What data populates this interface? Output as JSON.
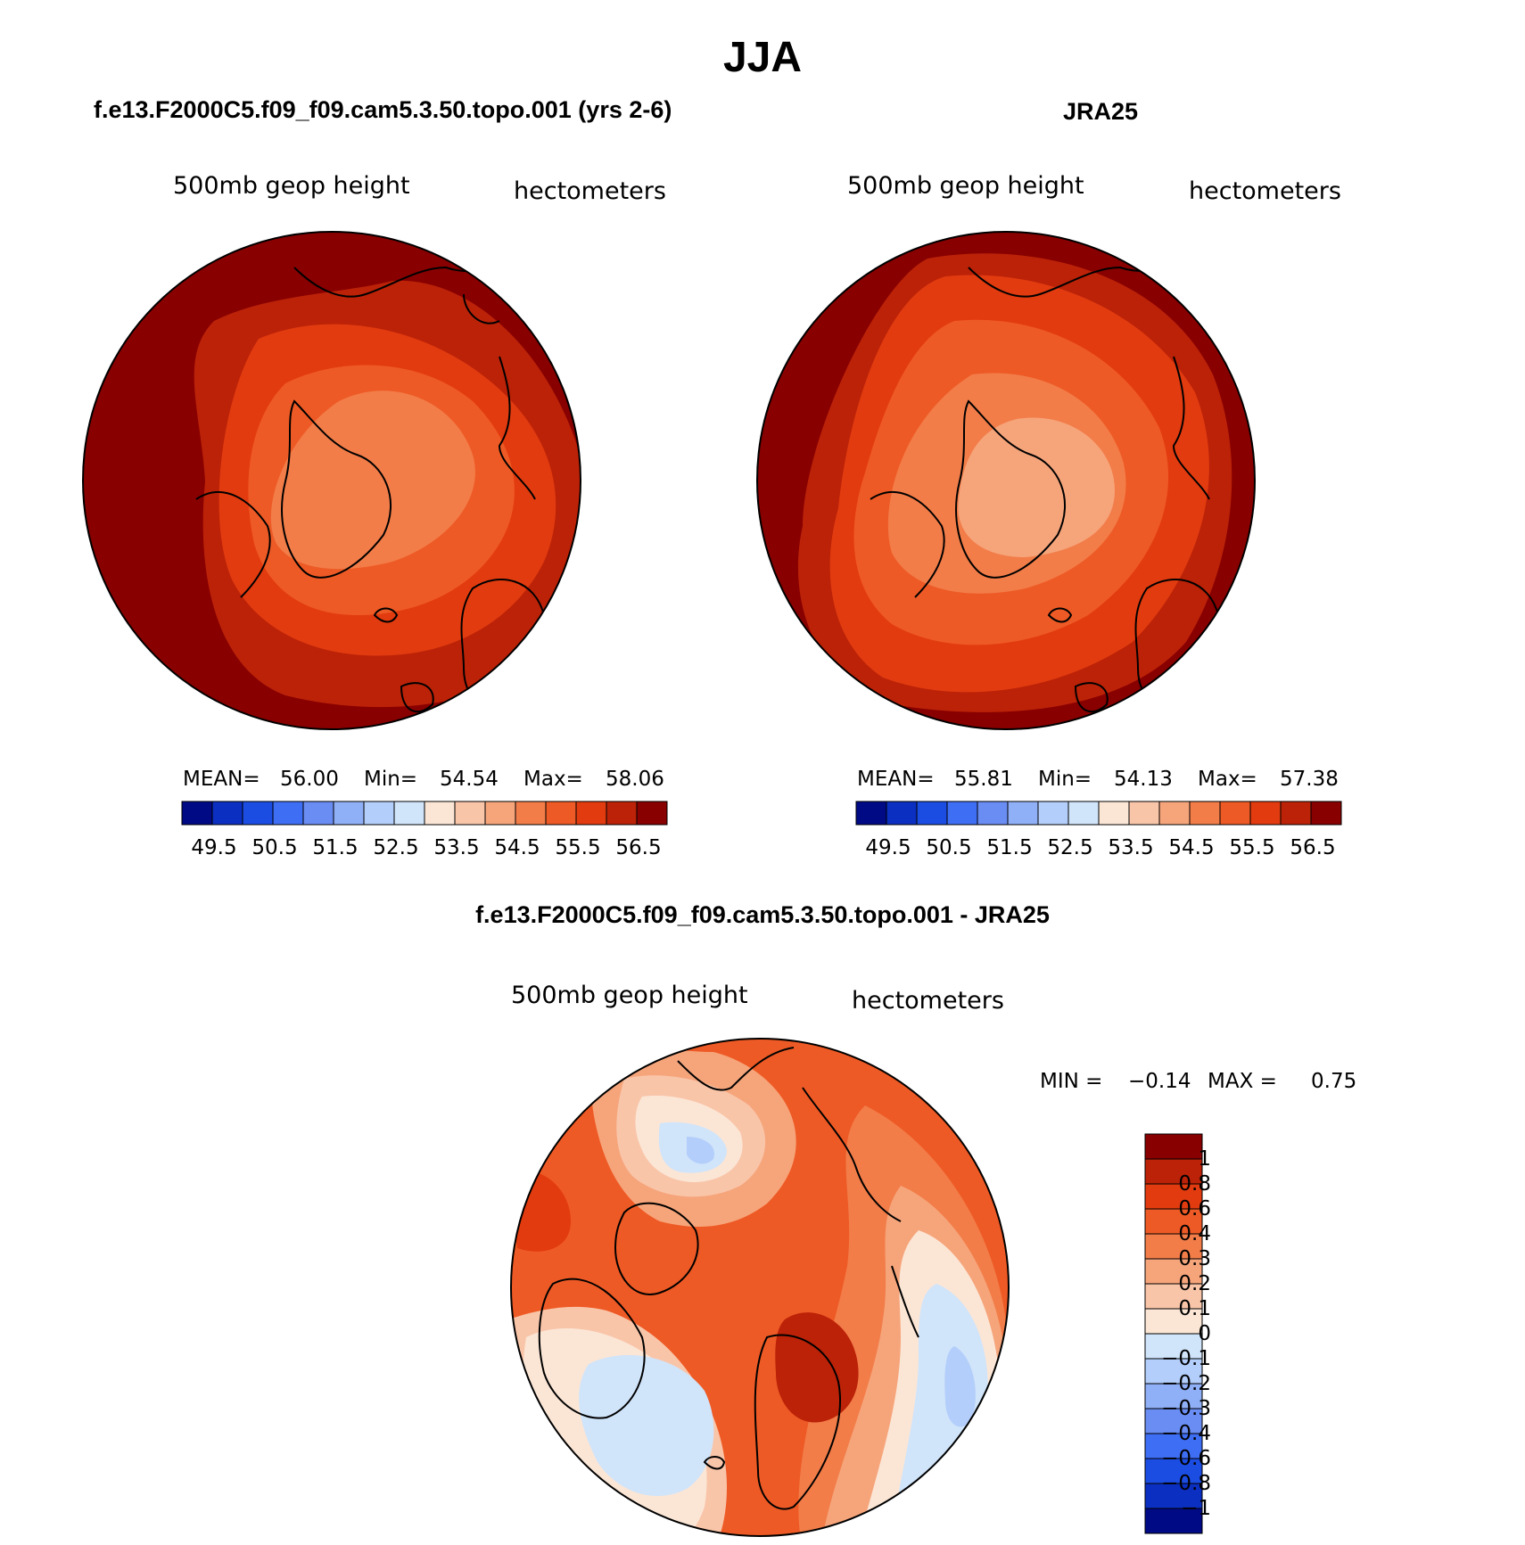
{
  "title": "JJA",
  "colors": {
    "pos": [
      "#fbe6d6",
      "#f9c5a9",
      "#f6a57b",
      "#f27d49",
      "#ee5a25",
      "#e23b0f",
      "#bb2208",
      "#880000"
    ],
    "neg": [
      "#d0e4fa",
      "#b3cefa",
      "#8faff6",
      "#6a8df4",
      "#3e6ef4",
      "#1b4de2",
      "#0b2fc0",
      "#000a84"
    ],
    "land_outline": "#000000"
  },
  "panels": [
    {
      "id": "model",
      "header": "f.e13.F2000C5.f09_f09.cam5.3.50.topo.001 (yrs 2-6)",
      "left_label": "500mb geop height",
      "right_label": "hectometers",
      "stats": {
        "mean_label": "MEAN=",
        "mean": "56.00",
        "min_label": "Min=",
        "min": "54.54",
        "max_label": "Max=",
        "max": "58.06"
      },
      "colorbar_ticks": [
        "49.5",
        "50.5",
        "51.5",
        "52.5",
        "53.5",
        "54.5",
        "55.5",
        "56.5"
      ]
    },
    {
      "id": "obs",
      "header": "JRA25",
      "left_label": "500mb geop height",
      "right_label": "hectometers",
      "stats": {
        "mean_label": "MEAN=",
        "mean": "55.81",
        "min_label": "Min=",
        "min": "54.13",
        "max_label": "Max=",
        "max": "57.38"
      },
      "colorbar_ticks": [
        "49.5",
        "50.5",
        "51.5",
        "52.5",
        "53.5",
        "54.5",
        "55.5",
        "56.5"
      ]
    }
  ],
  "diff_panel": {
    "header": "f.e13.F2000C5.f09_f09.cam5.3.50.topo.001 - JRA25",
    "left_label": "500mb geop height",
    "right_label": "hectometers",
    "stats": {
      "min_label": "MIN =",
      "min": "−0.14",
      "max_label": "MAX =",
      "max": "0.75"
    },
    "colorbar_ticks": [
      "1",
      "0.8",
      "0.6",
      "0.4",
      "0.3",
      "0.2",
      "0.1",
      "0",
      "−0.1",
      "−0.2",
      "−0.3",
      "−0.4",
      "−0.6",
      "−0.8",
      "−1"
    ]
  },
  "chart_data": [
    {
      "type": "heatmap",
      "projection": "north polar stereographic",
      "title": "f.e13.F2000C5.f09_f09.cam5.3.50.topo.001 (yrs 2-6)",
      "variable": "500mb geop height",
      "units": "hectometers",
      "contour_levels": [
        49.5,
        50.0,
        50.5,
        51.0,
        51.5,
        52.0,
        52.5,
        53.0,
        53.5,
        54.0,
        54.5,
        55.0,
        55.5,
        56.0,
        56.5
      ],
      "mean": 56.0,
      "min": 54.54,
      "max": 58.06
    },
    {
      "type": "heatmap",
      "projection": "north polar stereographic",
      "title": "JRA25",
      "variable": "500mb geop height",
      "units": "hectometers",
      "contour_levels": [
        49.5,
        50.0,
        50.5,
        51.0,
        51.5,
        52.0,
        52.5,
        53.0,
        53.5,
        54.0,
        54.5,
        55.0,
        55.5,
        56.0,
        56.5
      ],
      "mean": 55.81,
      "min": 54.13,
      "max": 57.38
    },
    {
      "type": "heatmap",
      "projection": "north polar stereographic",
      "title": "f.e13.F2000C5.f09_f09.cam5.3.50.topo.001 - JRA25",
      "variable": "500mb geop height",
      "units": "hectometers",
      "contour_levels": [
        -1,
        -0.8,
        -0.6,
        -0.4,
        -0.3,
        -0.2,
        -0.1,
        0,
        0.1,
        0.2,
        0.3,
        0.4,
        0.6,
        0.8,
        1
      ],
      "min": -0.14,
      "max": 0.75
    }
  ]
}
